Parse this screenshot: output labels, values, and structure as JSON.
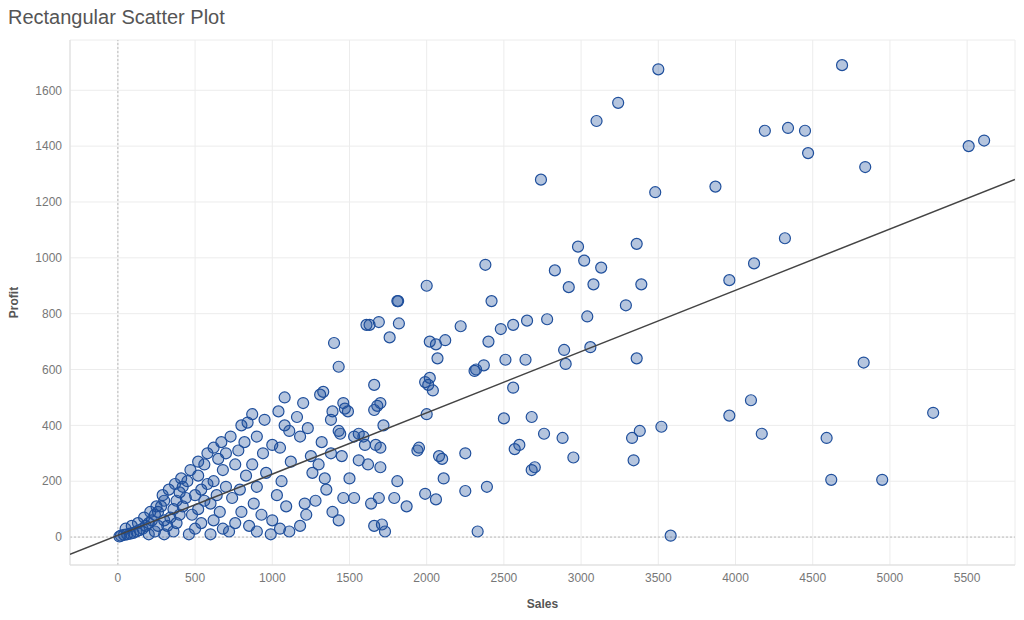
{
  "chart_data": {
    "type": "scatter",
    "title": "Rectangular Scatter Plot",
    "x_label": "Sales",
    "y_label": "Profit",
    "color": "#1f4f9c",
    "marker": "circle",
    "grid": true,
    "xlim": [
      -310,
      5810
    ],
    "xticks": [
      0,
      500,
      1000,
      1500,
      2000,
      2500,
      3000,
      3500,
      4000,
      4500,
      5000,
      5500
    ],
    "ylim": [
      -100,
      1780
    ],
    "yticks": [
      0,
      200,
      400,
      600,
      800,
      1000,
      1200,
      1400,
      1600
    ],
    "x": [
      4690,
      3500,
      3240,
      3100,
      4190,
      4340,
      4450,
      4470,
      5510,
      5610,
      4840,
      2740,
      3870,
      3480,
      4320,
      3360,
      2980,
      3020,
      3130,
      2380,
      2830,
      4120,
      3960,
      2920,
      3080,
      3390,
      3290,
      2000,
      2420,
      1810,
      1815,
      1610,
      1630,
      1690,
      1820,
      1760,
      2220,
      2480,
      2560,
      2650,
      2780,
      2400,
      2020,
      2060,
      2120,
      1990,
      2010,
      2070,
      1400,
      1430,
      3040,
      3060,
      2890,
      2900,
      3360,
      2510,
      2640,
      2560,
      2310,
      2320,
      2370,
      2020,
      2040,
      2000,
      4830,
      2680,
      2500,
      2760,
      2880,
      3330,
      3380,
      3520,
      3340,
      2950,
      2600,
      2570,
      2680,
      2700,
      3580,
      2330,
      2390,
      2250,
      2250,
      2060,
      2110,
      1990,
      1950,
      1940,
      2080,
      2100,
      4100,
      3960,
      4170,
      4590,
      4620,
      4950,
      5280,
      1870,
      1790,
      1810,
      1720,
      1670,
      1700,
      1660,
      1660,
      1680,
      1700,
      1490,
      1460,
      1470,
      1530,
      1560,
      1590,
      1600,
      1560,
      1620,
      1700,
      1690,
      1640,
      1660,
      1710,
      1730,
      1530,
      1460,
      1500,
      1450,
      1430,
      1440,
      1380,
      1330,
      1310,
      1380,
      1390,
      1320,
      1300,
      1340,
      1350,
      1280,
      1390,
      1430,
      1200,
      1160,
      1180,
      1230,
      1250,
      1260,
      1210,
      1220,
      1180,
      1110,
      1080,
      1040,
      1080,
      1110,
      1000,
      1050,
      1120,
      1060,
      1030,
      1090,
      1000,
      1050,
      990,
      950,
      900,
      940,
      870,
      960,
      900,
      880,
      930,
      850,
      900,
      800,
      820,
      780,
      760,
      830,
      790,
      740,
      800,
      760,
      720,
      700,
      650,
      680,
      620,
      700,
      640,
      600,
      660,
      620,
      680,
      600,
      560,
      520,
      580,
      540,
      500,
      560,
      520,
      480,
      540,
      500,
      460,
      450,
      420,
      400,
      440,
      380,
      420,
      360,
      400,
      340,
      380,
      320,
      360,
      300,
      300,
      280,
      260,
      240,
      300,
      220,
      260,
      200,
      180,
      240,
      160,
      140,
      200,
      120,
      100,
      80,
      60,
      40,
      20,
      10,
      50,
      90,
      130,
      170,
      210,
      250,
      290,
      330,
      370,
      410,
      470,
      520,
      580,
      620,
      670,
      730,
      840,
      870
    ],
    "values": [
      1690,
      1675,
      1555,
      1490,
      1455,
      1465,
      1455,
      1375,
      1400,
      1420,
      1325,
      1280,
      1255,
      1235,
      1070,
      1050,
      1040,
      990,
      965,
      975,
      955,
      980,
      920,
      895,
      905,
      905,
      830,
      900,
      845,
      845,
      845,
      760,
      760,
      770,
      765,
      715,
      755,
      745,
      760,
      775,
      780,
      700,
      700,
      690,
      705,
      555,
      545,
      640,
      695,
      610,
      790,
      680,
      670,
      620,
      640,
      635,
      635,
      535,
      595,
      600,
      615,
      570,
      525,
      440,
      625,
      430,
      425,
      370,
      355,
      355,
      380,
      395,
      275,
      285,
      330,
      315,
      240,
      250,
      5,
      20,
      180,
      165,
      300,
      135,
      210,
      155,
      320,
      310,
      290,
      280,
      490,
      435,
      370,
      355,
      205,
      205,
      445,
      110,
      140,
      200,
      400,
      330,
      320,
      545,
      455,
      470,
      480,
      450,
      480,
      460,
      360,
      370,
      360,
      330,
      275,
      260,
      250,
      140,
      120,
      40,
      45,
      20,
      140,
      140,
      210,
      290,
      380,
      370,
      300,
      520,
      510,
      420,
      450,
      340,
      260,
      210,
      170,
      130,
      90,
      60,
      480,
      430,
      360,
      390,
      290,
      230,
      120,
      80,
      40,
      20,
      500,
      450,
      400,
      380,
      330,
      320,
      270,
      200,
      150,
      110,
      60,
      30,
      10,
      420,
      360,
      300,
      260,
      230,
      180,
      120,
      80,
      40,
      20,
      400,
      340,
      310,
      260,
      220,
      170,
      140,
      90,
      50,
      20,
      300,
      280,
      240,
      200,
      180,
      150,
      120,
      90,
      60,
      30,
      10,
      260,
      220,
      190,
      170,
      150,
      130,
      100,
      80,
      50,
      30,
      10,
      200,
      180,
      160,
      140,
      130,
      110,
      100,
      80,
      70,
      50,
      40,
      20,
      10,
      130,
      110,
      90,
      80,
      60,
      60,
      40,
      50,
      40,
      20,
      30,
      25,
      10,
      20,
      15,
      12,
      10,
      8,
      5,
      2,
      30,
      40,
      50,
      70,
      90,
      110,
      150,
      170,
      190,
      210,
      240,
      270,
      300,
      320,
      340,
      360,
      410,
      440
    ],
    "trend_line": {
      "x": [
        -310,
        5810
      ],
      "values": [
        -62,
        1281
      ],
      "color": "#444444"
    }
  }
}
